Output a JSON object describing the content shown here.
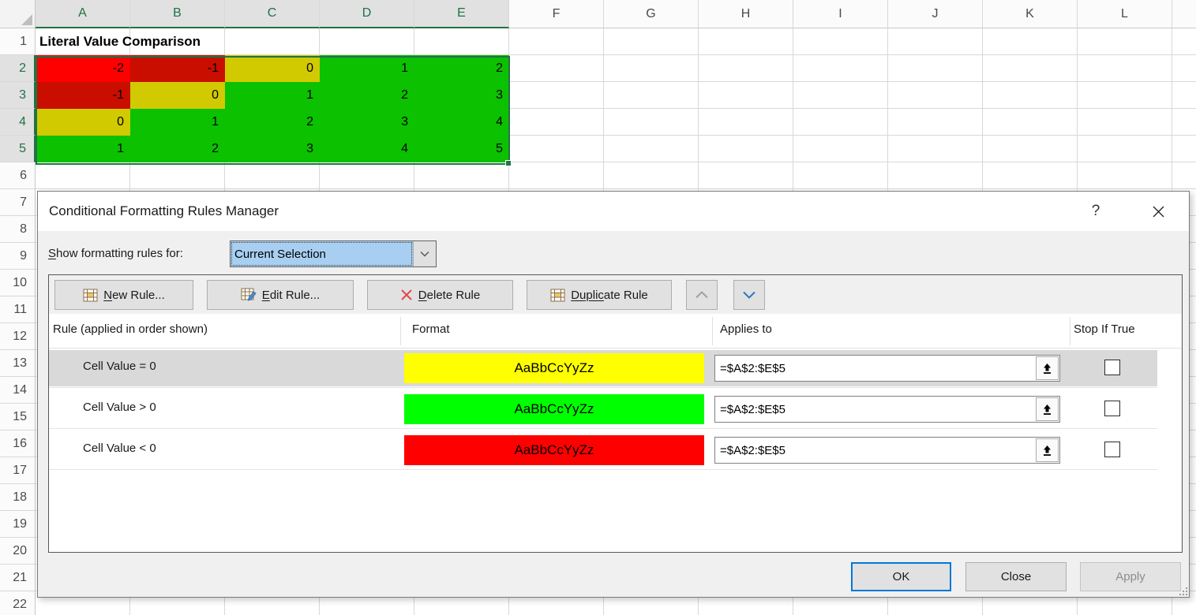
{
  "spreadsheet": {
    "column_headers": [
      "A",
      "B",
      "C",
      "D",
      "E",
      "F",
      "G",
      "H",
      "I",
      "J",
      "K",
      "L"
    ],
    "selected_columns": [
      "A",
      "B",
      "C",
      "D",
      "E"
    ],
    "row_count": 22,
    "selected_rows": [
      2,
      3,
      4,
      5
    ],
    "a1_text": "Literal Value Comparison",
    "matrix_values": [
      [
        -2,
        -1,
        0,
        1,
        2
      ],
      [
        -1,
        0,
        1,
        2,
        3
      ],
      [
        0,
        1,
        2,
        3,
        4
      ],
      [
        1,
        2,
        3,
        4,
        5
      ]
    ],
    "matrix_color_keys": [
      [
        "activeRed",
        "red",
        "yellow",
        "green",
        "green"
      ],
      [
        "red",
        "yellow",
        "green",
        "green",
        "green"
      ],
      [
        "yellow",
        "green",
        "green",
        "green",
        "green"
      ],
      [
        "green",
        "green",
        "green",
        "green",
        "green"
      ]
    ],
    "cell_colors": {
      "activeRed": "#FF0000",
      "red": "#C90E00",
      "yellow": "#D2CA00",
      "green": "#0BC100"
    },
    "selection_color": "#217346"
  },
  "dialog": {
    "title": "Conditional Formatting Rules Manager",
    "help_label": "?",
    "close_label": "✕",
    "show_rules": {
      "key": "S",
      "post": "how formatting rules for:"
    },
    "show_rules_value": "Current Selection",
    "toolbar": {
      "new_rule": {
        "pre": "",
        "key": "N",
        "post": "ew Rule..."
      },
      "edit_rule": {
        "pre": "",
        "key": "E",
        "post": "dit Rule..."
      },
      "delete_rule": {
        "pre": "",
        "key": "D",
        "post": "elete Rule"
      },
      "duplicate_rule": {
        "pre": "Dupli",
        "key": "c",
        "post": "ate Rule"
      }
    },
    "table": {
      "headers": [
        "Rule (applied in order shown)",
        "Format",
        "Applies to",
        "Stop If True"
      ],
      "rules": [
        {
          "name": "Cell Value = 0",
          "format_text": "AaBbCcYyZz",
          "format_color": "#FFFF00",
          "applies_to": "=$A$2:$E$5",
          "stop_if_true": false,
          "selected": true
        },
        {
          "name": "Cell Value > 0",
          "format_text": "AaBbCcYyZz",
          "format_color": "#00FF00",
          "applies_to": "=$A$2:$E$5",
          "stop_if_true": false,
          "selected": false
        },
        {
          "name": "Cell Value < 0",
          "format_text": "AaBbCcYyZz",
          "format_color": "#FF0000",
          "applies_to": "=$A$2:$E$5",
          "stop_if_true": false,
          "selected": false
        }
      ]
    },
    "buttons": {
      "ok": "OK",
      "close": "Close",
      "apply": "Apply"
    }
  }
}
